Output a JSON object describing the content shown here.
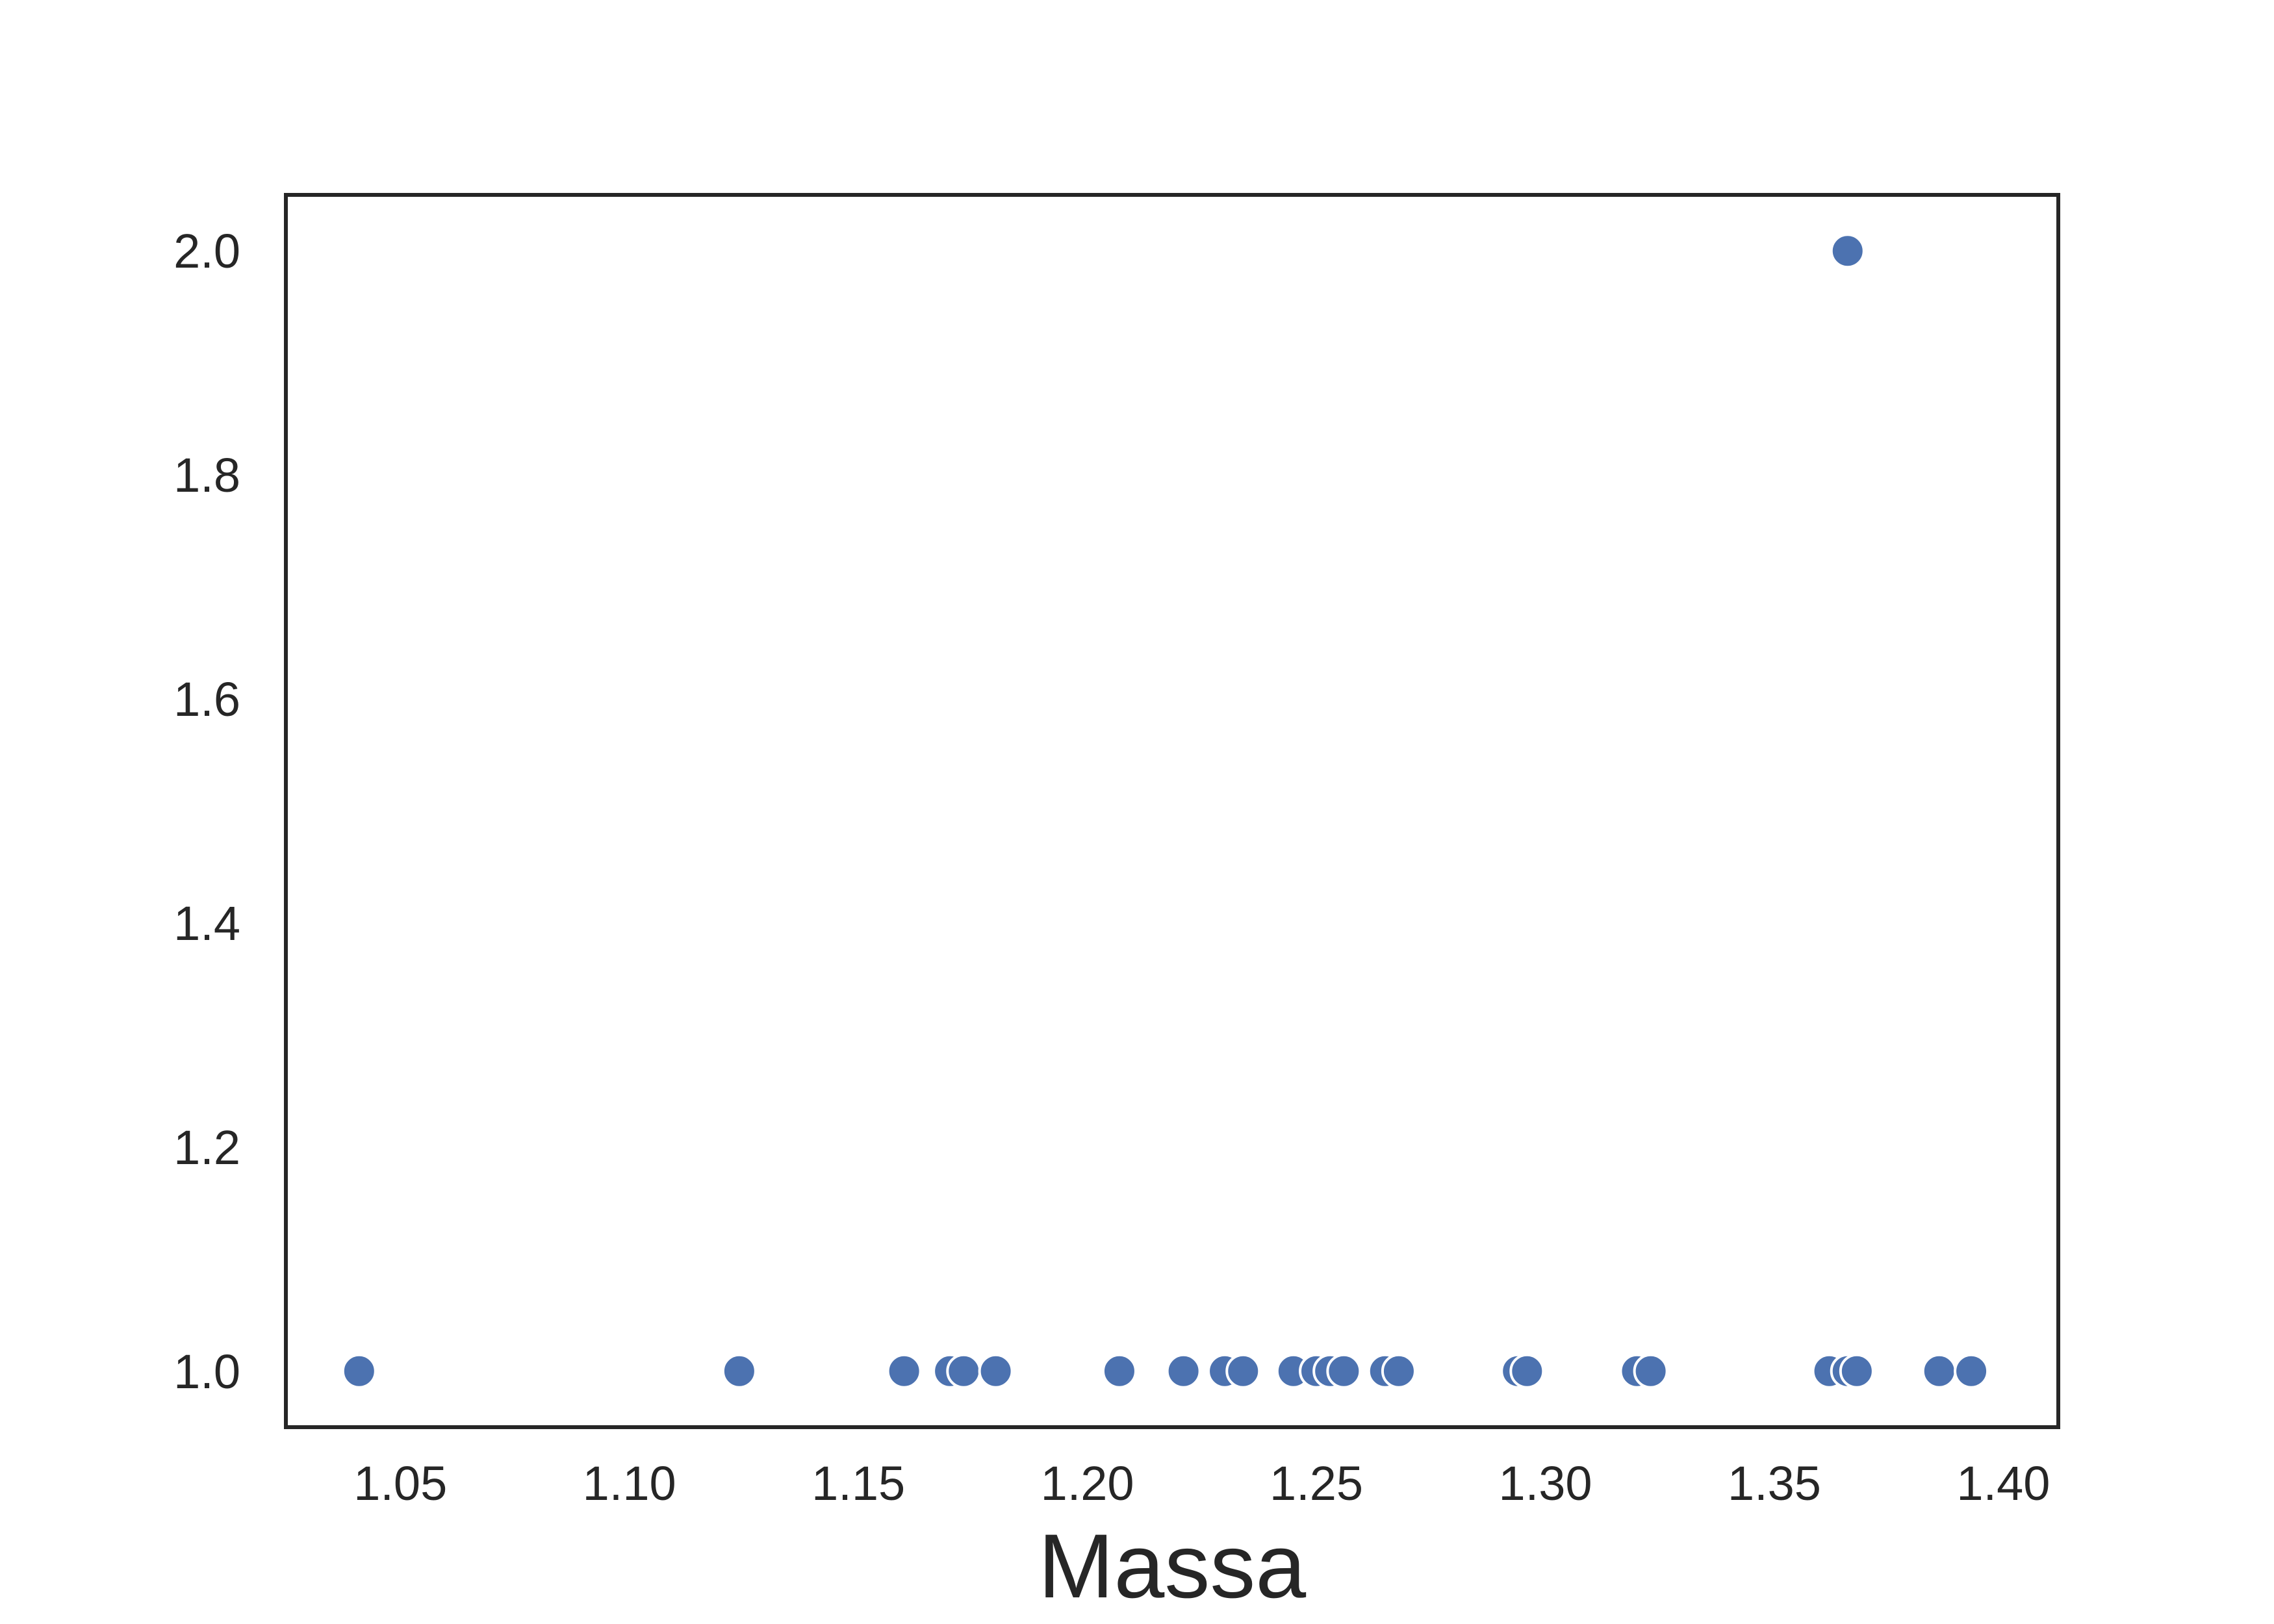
{
  "chart_data": {
    "type": "scatter",
    "title": "",
    "xlabel": "Massa",
    "ylabel": "",
    "xlim": [
      1.025,
      1.412
    ],
    "ylim": [
      0.95,
      2.05
    ],
    "xticks": [
      1.05,
      1.1,
      1.15,
      1.2,
      1.25,
      1.3,
      1.35,
      1.4
    ],
    "xtick_labels": [
      "1.05",
      "1.10",
      "1.15",
      "1.20",
      "1.25",
      "1.30",
      "1.35",
      "1.40"
    ],
    "yticks": [
      1.0,
      1.2,
      1.4,
      1.6,
      1.8,
      2.0
    ],
    "ytick_labels": [
      "1.0",
      "1.2",
      "1.4",
      "1.6",
      "1.8",
      "2.0"
    ],
    "grid": false,
    "marker_color": "#4c72b0",
    "marker_edge_color": "#ffffff",
    "frame_color": "#262626",
    "series": [
      {
        "x": [
          1.041,
          1.124,
          1.16,
          1.17,
          1.173,
          1.18,
          1.207,
          1.221,
          1.23,
          1.234,
          1.245,
          1.25,
          1.253,
          1.256,
          1.265,
          1.268,
          1.294,
          1.296,
          1.32,
          1.323,
          1.362,
          1.366,
          1.368,
          1.386,
          1.393,
          1.366
        ],
        "y": [
          1,
          1,
          1,
          1,
          1,
          1,
          1,
          1,
          1,
          1,
          1,
          1,
          1,
          1,
          1,
          1,
          1,
          1,
          1,
          1,
          1,
          1,
          1,
          1,
          1,
          2
        ]
      }
    ]
  }
}
